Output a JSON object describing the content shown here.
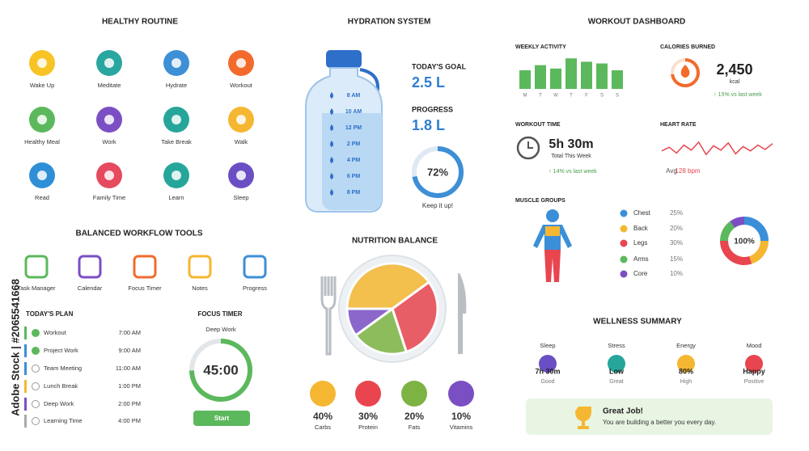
{
  "healthy_routine": {
    "title": "HEALTHY ROUTINE",
    "items": [
      "Wake Up",
      "Meditate",
      "Hydrate",
      "Workout",
      "Healthy Meal",
      "Work",
      "Take Break",
      "Walk",
      "Read",
      "Family Time",
      "Learn",
      "Sleep"
    ]
  },
  "workflow_tools": {
    "title": "BALANCED WORKFLOW TOOLS",
    "items": [
      "Task Manager",
      "Calendar",
      "Focus Timer",
      "Notes",
      "Progress"
    ]
  },
  "todays_plan": {
    "title": "TODAY'S PLAN",
    "items": [
      {
        "task": "Workout",
        "time": "7:00 AM",
        "done": true
      },
      {
        "task": "Project Work",
        "time": "9:00 AM",
        "done": true
      },
      {
        "task": "Team Meeting",
        "time": "11:00 AM",
        "done": false
      },
      {
        "task": "Lunch Break",
        "time": "1:00 PM",
        "done": false
      },
      {
        "task": "Deep Work",
        "time": "2:00 PM",
        "done": false
      },
      {
        "task": "Learning Time",
        "time": "4:00 PM",
        "done": false
      }
    ]
  },
  "focus_timer": {
    "title": "FOCUS TIMER",
    "mode": "Deep Work",
    "time": "45:00",
    "button": "Start"
  },
  "hydration": {
    "title": "HYDRATION SYSTEM",
    "bottle_marks": [
      "8 AM",
      "10 AM",
      "12 PM",
      "2 PM",
      "4 PM",
      "6 PM",
      "8 PM"
    ],
    "goal_label": "TODAY'S GOAL",
    "goal": "2.5 L",
    "progress_label": "PROGRESS",
    "progress": "1.8 L",
    "progress_ring": {
      "value": 72,
      "label": "72%"
    },
    "message": "Keep it up!"
  },
  "nutrition": {
    "title": "NUTRITION BALANCE",
    "items": [
      {
        "name": "Carbs",
        "value": 40,
        "label": "40%",
        "color": "#f5b731"
      },
      {
        "name": "Protein",
        "value": 30,
        "label": "30%",
        "color": "#e8454f"
      },
      {
        "name": "Fats",
        "value": 20,
        "label": "20%",
        "color": "#7cb342"
      },
      {
        "name": "Vitamins",
        "value": 10,
        "label": "10%",
        "color": "#7b4fc4"
      }
    ]
  },
  "workout_dashboard": {
    "title": "WORKOUT DASHBOARD",
    "weekly_activity": {
      "title": "WEEKLY ACTIVITY",
      "days": [
        "M",
        "T",
        "W",
        "T",
        "F",
        "S",
        "S"
      ],
      "values": [
        55,
        70,
        60,
        90,
        80,
        75,
        55
      ],
      "color": "#5cb85c"
    },
    "calories": {
      "title": "CALORIES BURNED",
      "value": "2,450",
      "unit": "kcal",
      "change": "↑ 15% vs last week"
    },
    "workout_time": {
      "title": "WORKOUT TIME",
      "value": "5h 30m",
      "caption": "Total This Week",
      "change": "↑ 14% vs last week"
    },
    "heart_rate": {
      "title": "HEART RATE",
      "label": "Avg",
      "value": "128 bpm",
      "trace": [
        126,
        131,
        123,
        134,
        127,
        138,
        121,
        133,
        127,
        137,
        122,
        132,
        126,
        134,
        128,
        136
      ]
    },
    "muscle_groups": {
      "title": "MUSCLE GROUPS",
      "total": "100%",
      "items": [
        {
          "name": "Chest",
          "value": 25,
          "label": "25%",
          "color": "#3b8fd9"
        },
        {
          "name": "Back",
          "value": 20,
          "label": "20%",
          "color": "#f5b731"
        },
        {
          "name": "Legs",
          "value": 30,
          "label": "30%",
          "color": "#e8454f"
        },
        {
          "name": "Arms",
          "value": 15,
          "label": "15%",
          "color": "#5cb85c"
        },
        {
          "name": "Core",
          "value": 10,
          "label": "10%",
          "color": "#7b4fc4"
        }
      ]
    }
  },
  "wellness": {
    "title": "WELLNESS SUMMARY",
    "items": [
      {
        "label": "Sleep",
        "value": "7h 30m",
        "status": "Good"
      },
      {
        "label": "Stress",
        "value": "Low",
        "status": "Great"
      },
      {
        "label": "Energy",
        "value": "80%",
        "status": "High"
      },
      {
        "label": "Mood",
        "value": "Happy",
        "status": "Positive"
      }
    ],
    "banner": {
      "title": "Great Job!",
      "message": "You are building a better you every day."
    }
  },
  "watermark": "Adobe Stock | #2065541668"
}
